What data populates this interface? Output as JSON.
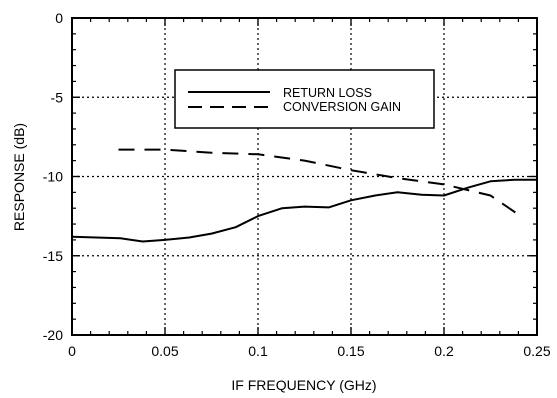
{
  "chart_data": {
    "type": "line",
    "title": "",
    "xlabel": "IF FREQUENCY (GHz)",
    "ylabel": "RESPONSE (dB)",
    "xlim": [
      0,
      0.25
    ],
    "ylim": [
      -20,
      0
    ],
    "x_ticks": [
      0,
      0.05,
      0.1,
      0.15,
      0.2,
      0.25
    ],
    "x_tick_labels": [
      "0",
      "0.05",
      "0.1",
      "0.15",
      "0.2",
      "0.25"
    ],
    "y_ticks": [
      0,
      -5,
      -10,
      -15,
      -20
    ],
    "y_tick_labels": [
      "0",
      "-5",
      "-10",
      "-15",
      "-20"
    ],
    "grid": true,
    "legend_position": "top-right",
    "series": [
      {
        "name": "RETURN LOSS",
        "line_style": "solid",
        "x": [
          0,
          0.013,
          0.026,
          0.038,
          0.05,
          0.063,
          0.075,
          0.088,
          0.1,
          0.113,
          0.125,
          0.138,
          0.15,
          0.163,
          0.175,
          0.188,
          0.2,
          0.213,
          0.225,
          0.238,
          0.25
        ],
        "y": [
          -13.8,
          -13.85,
          -13.9,
          -14.1,
          -14.0,
          -13.85,
          -13.6,
          -13.2,
          -12.5,
          -12.0,
          -11.9,
          -11.95,
          -11.5,
          -11.2,
          -11.0,
          -11.15,
          -11.2,
          -10.7,
          -10.3,
          -10.2,
          -10.2
        ]
      },
      {
        "name": "CONVERSION GAIN",
        "line_style": "dashed",
        "x": [
          0.025,
          0.05,
          0.075,
          0.1,
          0.125,
          0.15,
          0.175,
          0.2,
          0.225,
          0.24
        ],
        "y": [
          -8.3,
          -8.3,
          -8.5,
          -8.6,
          -9.0,
          -9.6,
          -10.1,
          -10.5,
          -11.2,
          -12.4
        ]
      }
    ]
  }
}
